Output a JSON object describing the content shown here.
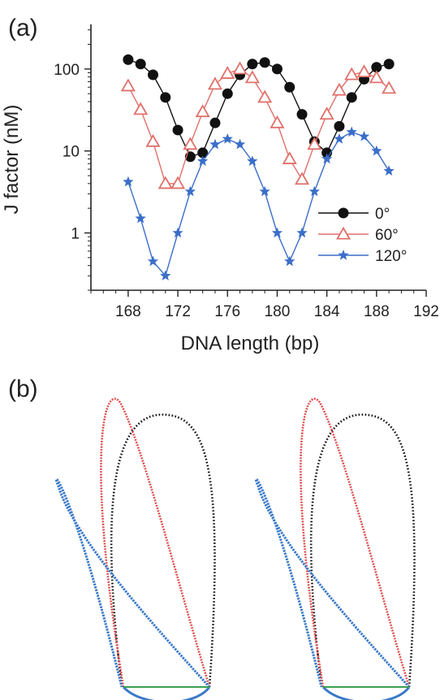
{
  "panel_a": {
    "label": "(a)",
    "chart_data": {
      "type": "line",
      "xlabel": "DNA length (bp)",
      "ylabel": "J factor (nM)",
      "xlim": [
        165,
        192
      ],
      "ylim": [
        0.2,
        350
      ],
      "yscale": "log",
      "xticks": [
        168,
        172,
        176,
        180,
        184,
        188,
        192
      ],
      "yticks": [
        1,
        10,
        100
      ],
      "ytick_labels": [
        "1",
        "10",
        "100"
      ],
      "legend_placement": "center-right",
      "series": [
        {
          "name": "0°",
          "color": "#111111",
          "marker": "circle",
          "x": [
            168,
            169,
            170,
            171,
            172,
            173,
            174,
            175,
            176,
            177,
            178,
            179,
            180,
            181,
            182,
            183,
            184,
            185,
            186,
            187,
            188,
            189
          ],
          "y": [
            130,
            115,
            85,
            45,
            18,
            8.5,
            9.5,
            22,
            50,
            85,
            115,
            120,
            100,
            60,
            28,
            13,
            9.5,
            20,
            45,
            75,
            105,
            115
          ]
        },
        {
          "name": "60°",
          "color": "#e0706a",
          "marker": "triangle",
          "x": [
            168,
            169,
            170,
            171,
            172,
            173,
            174,
            175,
            176,
            177,
            178,
            179,
            180,
            181,
            182,
            183,
            184,
            185,
            186,
            187,
            188,
            189
          ],
          "y": [
            62,
            32,
            13,
            4,
            4,
            12,
            30,
            65,
            88,
            100,
            78,
            45,
            22,
            8,
            4.5,
            12,
            28,
            55,
            85,
            92,
            78,
            58
          ]
        },
        {
          "name": "120°",
          "color": "#3a6ec8",
          "marker": "star",
          "x": [
            168,
            169,
            170,
            171,
            172,
            173,
            174,
            175,
            176,
            177,
            178,
            179,
            180,
            181,
            182,
            183,
            184,
            185,
            186,
            187,
            188,
            189
          ],
          "y": [
            4.2,
            1.5,
            0.45,
            0.3,
            1.0,
            3.2,
            7.5,
            12,
            14,
            12,
            7.5,
            3.2,
            1.0,
            0.45,
            1.0,
            3.2,
            8,
            14,
            17,
            15,
            10,
            5.7
          ]
        }
      ]
    }
  },
  "panel_b": {
    "label": "(b)",
    "loop_colors": {
      "deg0": "#111111",
      "deg60": "#e05050",
      "deg120": "#3a7ac8",
      "base": "#3aa050"
    }
  }
}
